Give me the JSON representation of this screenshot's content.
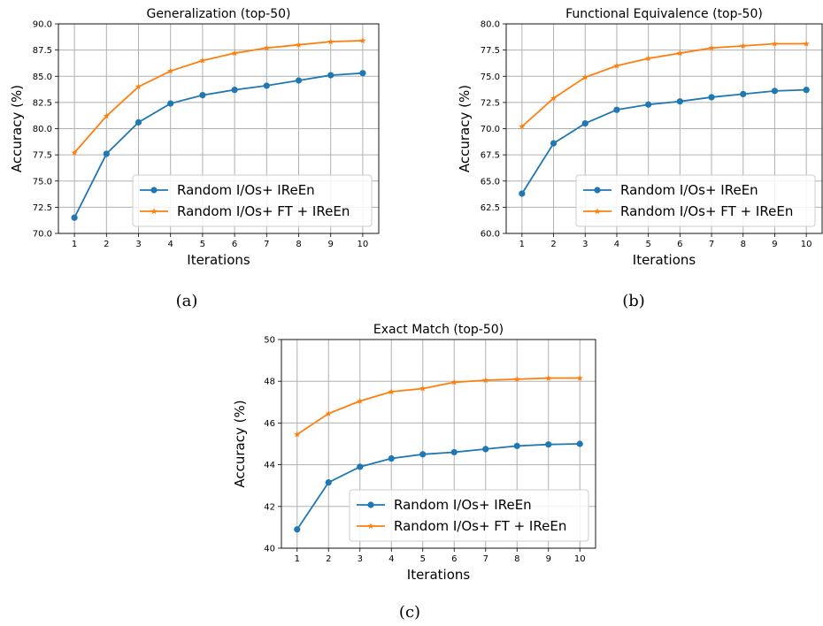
{
  "chart_data": [
    {
      "type": "line",
      "title": "Generalization (top-50)",
      "xlabel": "Iterations",
      "ylabel": "Accuracy (%)",
      "x": [
        1,
        2,
        3,
        4,
        5,
        6,
        7,
        8,
        9,
        10
      ],
      "xticks": [
        "1",
        "2",
        "3",
        "4",
        "5",
        "6",
        "7",
        "8",
        "9",
        "10"
      ],
      "ylim": [
        70,
        90
      ],
      "yticks": [
        "70.0",
        "72.5",
        "75.0",
        "77.5",
        "80.0",
        "82.5",
        "85.0",
        "87.5",
        "90.0"
      ],
      "grid": true,
      "legend_position": "lower right",
      "caption": "(a)",
      "series": [
        {
          "name": "Random I/Os+ IReEn",
          "color": "#1f77b4",
          "marker": "circle",
          "values": [
            71.5,
            77.6,
            80.6,
            82.4,
            83.2,
            83.7,
            84.1,
            84.6,
            85.1,
            85.3
          ]
        },
        {
          "name": "Random I/Os+ FT + IReEn",
          "color": "#ff7f0e",
          "marker": "star",
          "values": [
            77.7,
            81.2,
            84.0,
            85.5,
            86.5,
            87.2,
            87.7,
            88.0,
            88.3,
            88.4
          ]
        }
      ]
    },
    {
      "type": "line",
      "title": "Functional Equivalence (top-50)",
      "xlabel": "Iterations",
      "ylabel": "Accuracy (%)",
      "x": [
        1,
        2,
        3,
        4,
        5,
        6,
        7,
        8,
        9,
        10
      ],
      "xticks": [
        "1",
        "2",
        "3",
        "4",
        "5",
        "6",
        "7",
        "8",
        "9",
        "10"
      ],
      "ylim": [
        60,
        80
      ],
      "yticks": [
        "60.0",
        "62.5",
        "65.0",
        "67.5",
        "70.0",
        "72.5",
        "75.0",
        "77.5",
        "80.0"
      ],
      "grid": true,
      "legend_position": "lower right",
      "caption": "(b)",
      "series": [
        {
          "name": "Random I/Os+ IReEn",
          "color": "#1f77b4",
          "marker": "circle",
          "values": [
            63.8,
            68.6,
            70.5,
            71.8,
            72.3,
            72.6,
            73.0,
            73.3,
            73.6,
            73.7
          ]
        },
        {
          "name": "Random I/Os+ FT + IReEn",
          "color": "#ff7f0e",
          "marker": "star",
          "values": [
            70.2,
            72.9,
            74.9,
            76.0,
            76.7,
            77.2,
            77.7,
            77.9,
            78.1,
            78.1
          ]
        }
      ]
    },
    {
      "type": "line",
      "title": "Exact Match (top-50)",
      "xlabel": "Iterations",
      "ylabel": "Accuracy (%)",
      "x": [
        1,
        2,
        3,
        4,
        5,
        6,
        7,
        8,
        9,
        10
      ],
      "xticks": [
        "1",
        "2",
        "3",
        "4",
        "5",
        "6",
        "7",
        "8",
        "9",
        "10"
      ],
      "ylim": [
        40,
        50
      ],
      "yticks": [
        "40",
        "42",
        "44",
        "46",
        "48",
        "50"
      ],
      "grid": true,
      "legend_position": "lower right",
      "caption": "(c)",
      "series": [
        {
          "name": "Random I/Os+ IReEn",
          "color": "#1f77b4",
          "marker": "circle",
          "values": [
            40.9,
            43.15,
            43.9,
            44.3,
            44.5,
            44.6,
            44.75,
            44.9,
            44.97,
            45.0
          ]
        },
        {
          "name": "Random I/Os+ FT + IReEn",
          "color": "#ff7f0e",
          "marker": "star",
          "values": [
            45.45,
            46.45,
            47.05,
            47.5,
            47.65,
            47.95,
            48.05,
            48.1,
            48.15,
            48.15
          ]
        }
      ]
    }
  ]
}
